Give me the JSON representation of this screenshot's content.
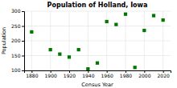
{
  "chart_data": {
    "type": "scatter",
    "title": "Population of Holland, Iowa",
    "xlabel": "Census Year",
    "ylabel": "Population",
    "x": [
      1880,
      1900,
      1910,
      1920,
      1930,
      1940,
      1950,
      1960,
      1970,
      1980,
      1990,
      2000,
      2010,
      2020
    ],
    "values": [
      230,
      170,
      155,
      145,
      170,
      105,
      125,
      265,
      255,
      290,
      110,
      235,
      285,
      270
    ],
    "color": "#007700",
    "marker": "square",
    "xlim": [
      1872,
      2028
    ],
    "ylim": [
      100,
      300
    ],
    "xticks": [
      1880,
      1900,
      1920,
      1940,
      1960,
      1980,
      2000,
      2020
    ],
    "yticks": [
      100,
      150,
      200,
      250,
      300
    ],
    "grid": true
  }
}
